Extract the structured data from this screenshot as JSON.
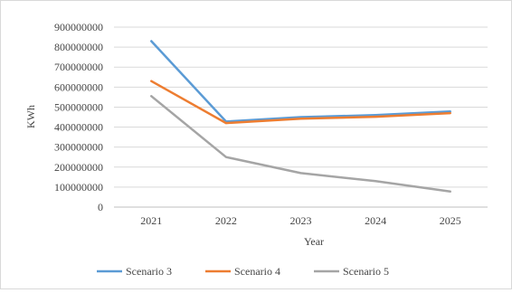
{
  "chart_data": {
    "type": "line",
    "xlabel": "Year",
    "ylabel": "KWh",
    "categories": [
      "2021",
      "2022",
      "2023",
      "2024",
      "2025"
    ],
    "ylim": [
      0,
      900000000
    ],
    "yticks": [
      0,
      100000000,
      200000000,
      300000000,
      400000000,
      500000000,
      600000000,
      700000000,
      800000000,
      900000000
    ],
    "ytick_labels": [
      "0",
      "100000000",
      "200000000",
      "300000000",
      "400000000",
      "500000000",
      "600000000",
      "700000000",
      "800000000",
      "900000000"
    ],
    "grid": "horizontal",
    "legend_position": "bottom",
    "series": [
      {
        "name": "Scenario 3",
        "color": "#5b9bd5",
        "values": [
          830000000,
          428000000,
          450000000,
          460000000,
          478000000
        ]
      },
      {
        "name": "Scenario 4",
        "color": "#ed7d31",
        "values": [
          630000000,
          420000000,
          442000000,
          452000000,
          470000000
        ]
      },
      {
        "name": "Scenario 5",
        "color": "#a5a5a5",
        "values": [
          555000000,
          250000000,
          170000000,
          130000000,
          78000000
        ]
      }
    ]
  }
}
